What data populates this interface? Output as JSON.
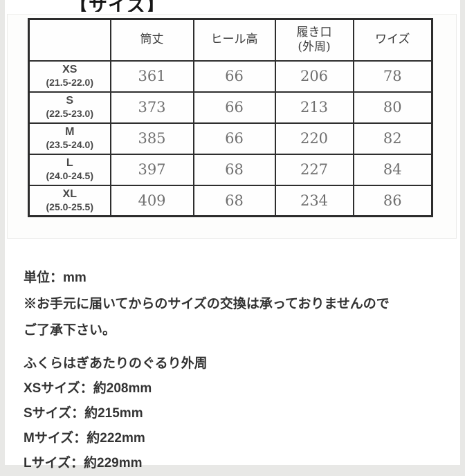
{
  "page": {
    "title": "【サイズ】",
    "side_background": "#e8e8e6",
    "table_border_color": "#2c2c2c"
  },
  "size_table": {
    "columns": [
      {
        "line1": "",
        "line2": ""
      },
      {
        "line1": "筒丈",
        "line2": ""
      },
      {
        "line1": "ヒール高",
        "line2": ""
      },
      {
        "line1": "履き口",
        "line2": "(外周)"
      },
      {
        "line1": "ワイズ",
        "line2": ""
      }
    ],
    "rows": [
      {
        "size": "XS",
        "range": "(21.5-22.0)",
        "tube_length": "361",
        "heel_height": "66",
        "opening": "206",
        "width": "78"
      },
      {
        "size": "S",
        "range": "(22.5-23.0)",
        "tube_length": "373",
        "heel_height": "66",
        "opening": "213",
        "width": "80"
      },
      {
        "size": "M",
        "range": "(23.5-24.0)",
        "tube_length": "385",
        "heel_height": "66",
        "opening": "220",
        "width": "82"
      },
      {
        "size": "L",
        "range": "(24.0-24.5)",
        "tube_length": "397",
        "heel_height": "68",
        "opening": "227",
        "width": "84"
      },
      {
        "size": "XL",
        "range": "(25.0-25.5)",
        "tube_length": "409",
        "heel_height": "68",
        "opening": "234",
        "width": "86"
      }
    ]
  },
  "notes": {
    "unit": "単位：mm",
    "exchange_line1": "※お手元に届いてからのサイズの交換は承っておりませんので",
    "exchange_line2": "ご了承下さい。"
  },
  "calf_circumference": {
    "heading": "ふくらはぎあたりのぐるり外周",
    "items": [
      "XSサイズ：約208mm",
      "Sサイズ：約215mm",
      "Mサイズ：約222mm",
      "Lサイズ：約229mm"
    ]
  }
}
